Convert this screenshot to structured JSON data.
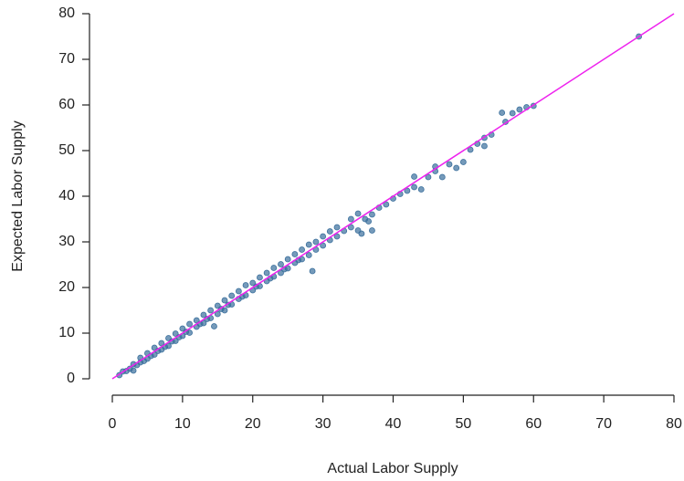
{
  "chart_data": {
    "type": "scatter",
    "xlabel": "Actual Labor Supply",
    "ylabel": "Expected Labor Supply",
    "xlim": [
      0,
      80
    ],
    "ylim": [
      0,
      80
    ],
    "xticks": [
      0,
      10,
      20,
      30,
      40,
      50,
      60,
      70,
      80
    ],
    "yticks": [
      0,
      10,
      20,
      30,
      40,
      50,
      60,
      70,
      80
    ],
    "series": [
      {
        "color": "#3a6f9c",
        "x": [
          1,
          1.5,
          2,
          2.5,
          3,
          3,
          3.5,
          4,
          4,
          4.5,
          5,
          5,
          5.5,
          6,
          6,
          6.5,
          7,
          7,
          7.5,
          8,
          8,
          8.5,
          9,
          9,
          9.5,
          10,
          10,
          10.5,
          11,
          11,
          12,
          12,
          12.5,
          13,
          13,
          13.5,
          14,
          14,
          14.5,
          15,
          15,
          15.5,
          16,
          16,
          16.5,
          17,
          17,
          18,
          18,
          18.5,
          19,
          19,
          20,
          20,
          20.5,
          21,
          21,
          22,
          22,
          22.5,
          23,
          23,
          24,
          24,
          24.5,
          25,
          25,
          26,
          26,
          26.5,
          27,
          27,
          28,
          28,
          28.5,
          29,
          29,
          30,
          30,
          31,
          31,
          32,
          32,
          33,
          34,
          34,
          35,
          35,
          35.5,
          36,
          36.5,
          37,
          37,
          38,
          39,
          40,
          41,
          42,
          43,
          43,
          44,
          45,
          46,
          46,
          47,
          48,
          49,
          50,
          51,
          52,
          53,
          53,
          54,
          55.5,
          56,
          57,
          58,
          59,
          60,
          75
        ],
        "values": [
          0.8,
          1.6,
          1.7,
          2.2,
          1.8,
          3.2,
          3.0,
          3.6,
          4.6,
          3.9,
          4.4,
          5.6,
          5.0,
          5.3,
          6.8,
          6.1,
          6.4,
          7.8,
          7.0,
          7.2,
          8.9,
          8.2,
          8.3,
          9.9,
          9.1,
          9.4,
          11.0,
          10.3,
          10.1,
          12.0,
          11.4,
          12.8,
          12.0,
          12.2,
          14.0,
          13.1,
          13.3,
          15.0,
          11.5,
          14.2,
          16.0,
          15.3,
          15.0,
          17.2,
          16.2,
          16.3,
          18.2,
          17.5,
          19.2,
          18.0,
          18.3,
          20.5,
          19.4,
          21.0,
          20.2,
          20.3,
          22.2,
          21.4,
          23.2,
          22.0,
          22.4,
          24.3,
          23.2,
          25.1,
          24.0,
          24.2,
          26.2,
          25.4,
          27.3,
          26.0,
          26.2,
          28.3,
          27.1,
          29.4,
          23.6,
          28.3,
          30.0,
          29.2,
          31.2,
          30.4,
          32.3,
          31.2,
          33.2,
          32.4,
          33.2,
          35.0,
          32.5,
          36.2,
          31.8,
          35.0,
          34.5,
          32.5,
          36.0,
          37.5,
          38.2,
          39.5,
          40.5,
          41.2,
          42.0,
          44.3,
          41.5,
          44.2,
          45.5,
          46.5,
          44.2,
          47.0,
          46.2,
          47.5,
          50.2,
          51.5,
          52.8,
          51.0,
          53.5,
          58.3,
          56.3,
          58.2,
          59.0,
          59.5,
          59.8,
          75.0
        ]
      }
    ],
    "reference_line": {
      "x": [
        0,
        80
      ],
      "y": [
        0,
        80
      ],
      "color": "#ee22ee"
    }
  }
}
